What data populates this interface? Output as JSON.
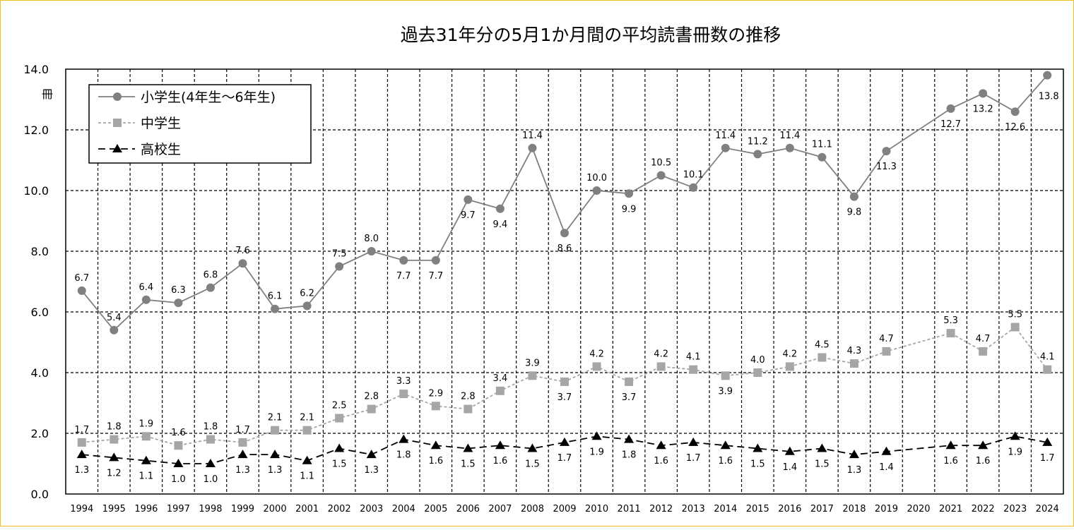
{
  "chart_data": {
    "type": "line",
    "title": "過去31年分の5月1か月間の平均読書冊数の推移",
    "ylabel": "冊",
    "xlabel": "",
    "ylim": [
      0,
      14
    ],
    "yticks": [
      "0.0",
      "2.0",
      "4.0",
      "6.0",
      "8.0",
      "10.0",
      "12.0",
      "14.0"
    ],
    "grid": true,
    "legend_position": "top-left",
    "categories": [
      "1994",
      "1995",
      "1996",
      "1997",
      "1998",
      "1999",
      "2000",
      "2001",
      "2002",
      "2003",
      "2004",
      "2005",
      "2006",
      "2007",
      "2008",
      "2009",
      "2010",
      "2011",
      "2012",
      "2013",
      "2014",
      "2015",
      "2016",
      "2017",
      "2018",
      "2019",
      "2020",
      "2021",
      "2022",
      "2023",
      "2024"
    ],
    "series": [
      {
        "name": "小学生(4年生～6年生)",
        "color": "#808080",
        "marker": "circle",
        "dash": "solid",
        "values": [
          6.7,
          5.4,
          6.4,
          6.3,
          6.8,
          7.6,
          6.1,
          6.2,
          7.5,
          8.0,
          7.7,
          7.7,
          9.7,
          9.4,
          11.4,
          8.6,
          10.0,
          9.9,
          10.5,
          10.1,
          11.4,
          11.2,
          11.4,
          11.1,
          9.8,
          11.3,
          null,
          12.7,
          13.2,
          12.6,
          13.8
        ]
      },
      {
        "name": "中学生",
        "color": "#a6a6a6",
        "marker": "square",
        "dash": "dotted",
        "values": [
          1.7,
          1.8,
          1.9,
          1.6,
          1.8,
          1.7,
          2.1,
          2.1,
          2.5,
          2.8,
          3.3,
          2.9,
          2.8,
          3.4,
          3.9,
          3.7,
          4.2,
          3.7,
          4.2,
          4.1,
          3.9,
          4.0,
          4.2,
          4.5,
          4.3,
          4.7,
          null,
          5.3,
          4.7,
          5.5,
          4.1
        ]
      },
      {
        "name": "高校生",
        "color": "#000000",
        "marker": "triangle",
        "dash": "dashed",
        "values": [
          1.3,
          1.2,
          1.1,
          1.0,
          1.0,
          1.3,
          1.3,
          1.1,
          1.5,
          1.3,
          1.8,
          1.6,
          1.5,
          1.6,
          1.5,
          1.7,
          1.9,
          1.8,
          1.6,
          1.7,
          1.6,
          1.5,
          1.4,
          1.5,
          1.3,
          1.4,
          null,
          1.6,
          1.6,
          1.9,
          1.7
        ]
      }
    ]
  }
}
